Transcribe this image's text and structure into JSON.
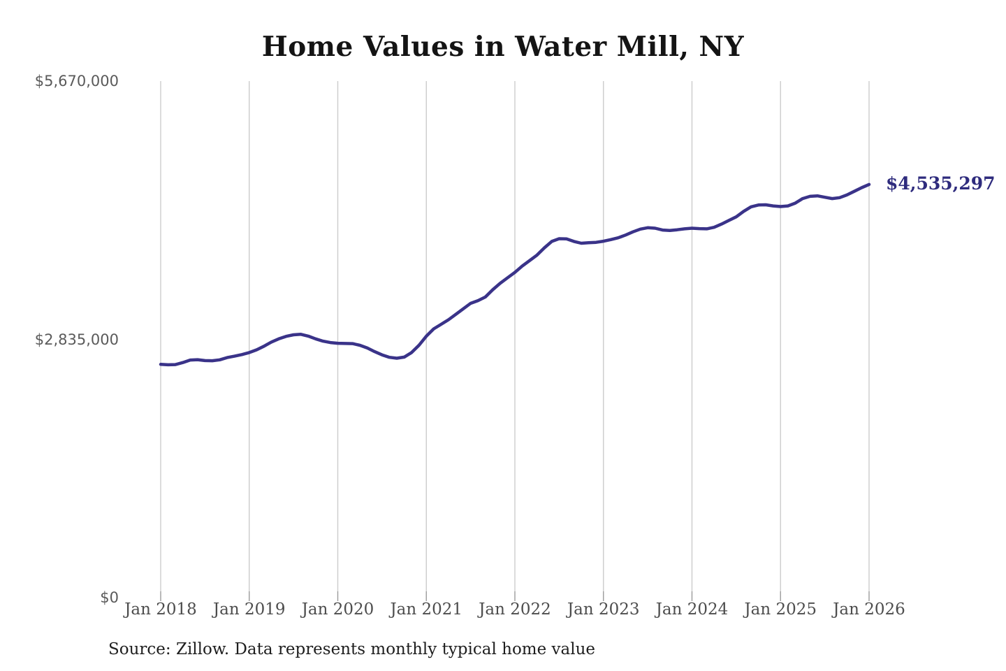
{
  "title": "Home Values in Water Mill, NY",
  "source": "Source: Zillow. Data represents monthly typical home value",
  "colors": {
    "line": "#3a3389",
    "grid": "#cccccc",
    "tick": "#9b9b9b",
    "annotation": "#2e2b7d",
    "title": "#141414",
    "y_label": "#5a5a5a",
    "x_label": "#4d4d4d",
    "source": "#1e1e1e",
    "background": "#ffffff"
  },
  "chart_data": {
    "type": "line",
    "title": "Home Values in Water Mill, NY",
    "xlabel": "",
    "ylabel": "",
    "frequency": "monthly",
    "x_start": "2018-01",
    "x_end": "2026-01",
    "ylim": [
      0,
      5670000
    ],
    "grid": "vertical-only",
    "legend": "none",
    "end_label": "$4,535,297",
    "end_value": 4535297,
    "x_tick_labels": [
      "Jan 2018",
      "Jan 2019",
      "Jan 2020",
      "Jan 2021",
      "Jan 2022",
      "Jan 2023",
      "Jan 2024",
      "Jan 2025",
      "Jan 2026"
    ],
    "y_ticks": [
      {
        "value": 0,
        "label": "$0"
      },
      {
        "value": 2835000,
        "label": "$2,835,000"
      },
      {
        "value": 5670000,
        "label": "$5,670,000"
      }
    ],
    "series": [
      {
        "name": "Typical home value",
        "values": [
          2560000,
          2556000,
          2558000,
          2580000,
          2608000,
          2612000,
          2602000,
          2600000,
          2610000,
          2635000,
          2650000,
          2668000,
          2690000,
          2720000,
          2760000,
          2805000,
          2840000,
          2868000,
          2885000,
          2890000,
          2870000,
          2840000,
          2815000,
          2800000,
          2792000,
          2790000,
          2788000,
          2770000,
          2740000,
          2700000,
          2665000,
          2638000,
          2628000,
          2640000,
          2690000,
          2770000,
          2870000,
          2950000,
          3000000,
          3050000,
          3110000,
          3170000,
          3230000,
          3260000,
          3300000,
          3380000,
          3450000,
          3510000,
          3570000,
          3640000,
          3700000,
          3760000,
          3840000,
          3910000,
          3940000,
          3938000,
          3910000,
          3890000,
          3895000,
          3900000,
          3912000,
          3930000,
          3950000,
          3980000,
          4015000,
          4045000,
          4060000,
          4055000,
          4035000,
          4030000,
          4038000,
          4048000,
          4055000,
          4050000,
          4048000,
          4065000,
          4100000,
          4140000,
          4180000,
          4240000,
          4290000,
          4310000,
          4312000,
          4300000,
          4293000,
          4300000,
          4330000,
          4380000,
          4405000,
          4410000,
          4395000,
          4380000,
          4390000,
          4420000,
          4460000,
          4500000,
          4535297
        ]
      }
    ]
  }
}
